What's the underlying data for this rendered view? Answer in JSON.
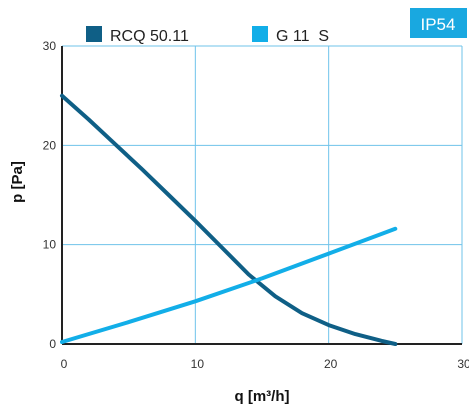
{
  "badge": {
    "label": "IP54",
    "color": "#19a8e0"
  },
  "chart_data": {
    "type": "line",
    "xlabel": "q [m³/h]",
    "ylabel": "p [Pa]",
    "xlim": [
      0,
      30
    ],
    "ylim": [
      0,
      30
    ],
    "xticks": [
      "0",
      "10",
      "20",
      "30"
    ],
    "yticks": [
      "0",
      "10",
      "20",
      "30"
    ],
    "grid": true,
    "grid_color": "#6fc3ea",
    "axis_color": "#222222",
    "legend_position": "top",
    "series": [
      {
        "name": "RCQ 50.11",
        "color": "#0f5f86",
        "points": [
          [
            0,
            25.0
          ],
          [
            2,
            22.6
          ],
          [
            4,
            20.1
          ],
          [
            6,
            17.6
          ],
          [
            8,
            15.0
          ],
          [
            10,
            12.4
          ],
          [
            12,
            9.7
          ],
          [
            14,
            7.0
          ],
          [
            16,
            4.8
          ],
          [
            18,
            3.1
          ],
          [
            20,
            1.9
          ],
          [
            22,
            1.0
          ],
          [
            24,
            0.3
          ],
          [
            25,
            0.0
          ]
        ]
      },
      {
        "name": "G 11  S",
        "color": "#12aee8",
        "points": [
          [
            0,
            0.2
          ],
          [
            5,
            2.2
          ],
          [
            10,
            4.3
          ],
          [
            15,
            6.6
          ],
          [
            20,
            9.1
          ],
          [
            25,
            11.6
          ]
        ]
      }
    ]
  }
}
